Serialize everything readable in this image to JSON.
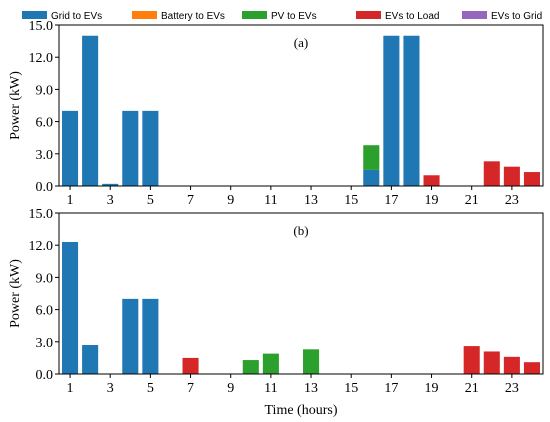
{
  "chart_data": [
    {
      "type": "bar",
      "stacked": true,
      "panel_label": "(a)",
      "xlabel": "",
      "ylabel": "Power (kW)",
      "ylim": [
        0,
        15
      ],
      "yticks": [
        "0.0",
        "3.0",
        "6.0",
        "9.0",
        "12.0",
        "15.0"
      ],
      "xticks": [
        "1",
        "3",
        "5",
        "7",
        "9",
        "11",
        "13",
        "15",
        "17",
        "19",
        "21",
        "23"
      ],
      "x": [
        1,
        2,
        3,
        4,
        5,
        6,
        7,
        8,
        9,
        10,
        11,
        12,
        13,
        14,
        15,
        16,
        17,
        18,
        19,
        20,
        21,
        22,
        23,
        24
      ],
      "series": [
        {
          "name": "Grid to EVs",
          "values": [
            7.0,
            14.0,
            0.2,
            7.0,
            7.0,
            0,
            0,
            0,
            0,
            0,
            0,
            0,
            0,
            0,
            0,
            1.5,
            14.0,
            14.0,
            0,
            0,
            0,
            0,
            0,
            0
          ]
        },
        {
          "name": "Battery to EVs",
          "values": [
            0,
            0,
            0,
            0,
            0,
            0,
            0,
            0,
            0,
            0,
            0,
            0,
            0,
            0,
            0,
            0,
            0,
            0,
            0,
            0,
            0,
            0,
            0,
            0
          ]
        },
        {
          "name": "PV to EVs",
          "values": [
            0,
            0,
            0,
            0,
            0,
            0,
            0,
            0,
            0,
            0,
            0,
            0,
            0,
            0,
            0,
            2.3,
            0,
            0,
            0,
            0,
            0,
            0,
            0,
            0
          ]
        },
        {
          "name": "EVs to Load",
          "values": [
            0,
            0,
            0,
            0,
            0,
            0,
            0,
            0,
            0,
            0,
            0,
            0,
            0,
            0,
            0,
            0,
            0,
            0,
            1.0,
            0,
            0,
            2.3,
            1.8,
            1.3
          ]
        },
        {
          "name": "EVs to Grid",
          "values": [
            0,
            0,
            0,
            0,
            0,
            0,
            0,
            0,
            0,
            0,
            0,
            0,
            0,
            0,
            0,
            0,
            0,
            0,
            0,
            0,
            0,
            0,
            0,
            0
          ]
        }
      ]
    },
    {
      "type": "bar",
      "stacked": true,
      "panel_label": "(b)",
      "xlabel": "Time (hours)",
      "ylabel": "Power (kW)",
      "ylim": [
        0,
        15
      ],
      "yticks": [
        "0.0",
        "3.0",
        "6.0",
        "9.0",
        "12.0",
        "15.0"
      ],
      "xticks": [
        "1",
        "3",
        "5",
        "7",
        "9",
        "11",
        "13",
        "15",
        "17",
        "19",
        "21",
        "23"
      ],
      "x": [
        1,
        2,
        3,
        4,
        5,
        6,
        7,
        8,
        9,
        10,
        11,
        12,
        13,
        14,
        15,
        16,
        17,
        18,
        19,
        20,
        21,
        22,
        23,
        24
      ],
      "series": [
        {
          "name": "Grid to EVs",
          "values": [
            12.3,
            2.7,
            0,
            7.0,
            7.0,
            0,
            0,
            0,
            0,
            0,
            0,
            0,
            0,
            0,
            0,
            0,
            0,
            0,
            0,
            0,
            0,
            0,
            0,
            0
          ]
        },
        {
          "name": "Battery to EVs",
          "values": [
            0,
            0,
            0,
            0,
            0,
            0,
            0,
            0,
            0,
            0,
            0,
            0,
            0,
            0,
            0,
            0,
            0,
            0,
            0,
            0,
            0,
            0,
            0,
            0
          ]
        },
        {
          "name": "PV to EVs",
          "values": [
            0,
            0,
            0,
            0,
            0,
            0,
            0,
            0,
            0,
            1.3,
            1.9,
            0,
            2.3,
            0,
            0,
            0,
            0,
            0,
            0,
            0,
            0,
            0,
            0,
            0
          ]
        },
        {
          "name": "EVs to Load",
          "values": [
            0,
            0,
            0,
            0,
            0,
            0,
            1.5,
            0,
            0,
            0,
            0,
            0,
            0,
            0,
            0,
            0,
            0,
            0,
            0,
            0,
            2.6,
            2.1,
            1.6,
            1.1
          ]
        },
        {
          "name": "EVs to Grid",
          "values": [
            0,
            0,
            0,
            0,
            0,
            0,
            0,
            0,
            0,
            0,
            0,
            0,
            0,
            0,
            0,
            0,
            0,
            0,
            0,
            0,
            0,
            0,
            0,
            0
          ]
        }
      ]
    }
  ],
  "legend": {
    "placement": "top",
    "items": [
      {
        "label": "Grid to EVs",
        "color": "#1f77b4"
      },
      {
        "label": "Battery to EVs",
        "color": "#ff7f0e"
      },
      {
        "label": "PV to EVs",
        "color": "#2ca02c"
      },
      {
        "label": "EVs to Load",
        "color": "#d62728"
      },
      {
        "label": "EVs to Grid",
        "color": "#9467bd"
      }
    ]
  }
}
